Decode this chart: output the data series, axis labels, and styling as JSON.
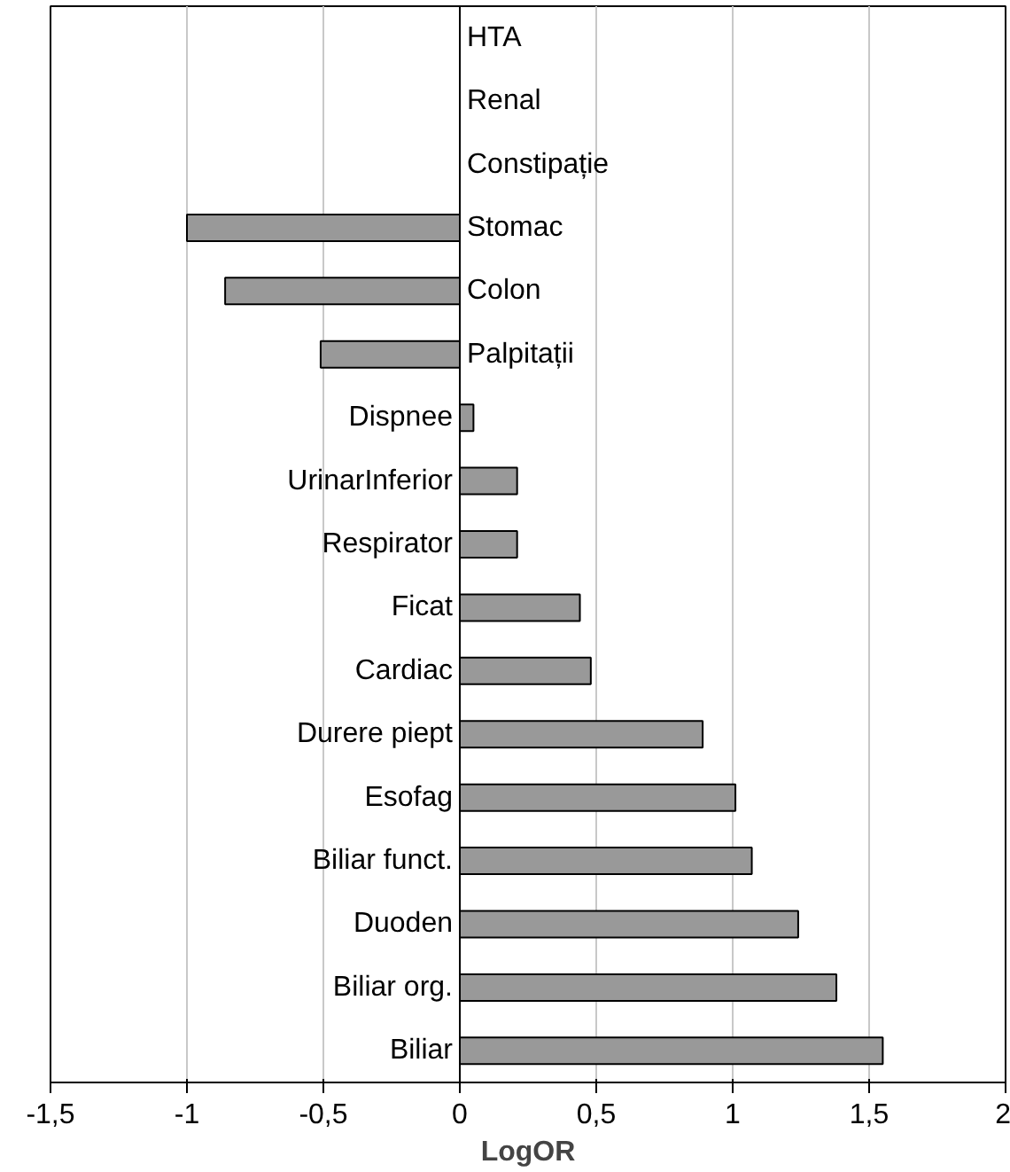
{
  "chart_data": {
    "type": "bar",
    "orientation": "horizontal",
    "xlabel": "LogOR",
    "categories": [
      "HTA",
      "Renal",
      "Constipație",
      "Stomac",
      "Colon",
      "Palpitații",
      "Dispnee",
      "UrinarInferior",
      "Respirator",
      "Ficat",
      "Cardiac",
      "Durere piept",
      "Esofag",
      "Biliar funct.",
      "Duoden",
      "Biliar org.",
      "Biliar"
    ],
    "values": [
      null,
      null,
      null,
      -1.0,
      -0.86,
      -0.51,
      0.05,
      0.21,
      0.21,
      0.44,
      0.48,
      0.89,
      1.01,
      1.07,
      1.24,
      1.38,
      1.55
    ],
    "color": "#999999",
    "xlim": [
      -1.5,
      2
    ],
    "xticks": [
      {
        "value": -1.5,
        "label": "-1,5"
      },
      -1,
      {
        "value": -0.5,
        "label": "-0,5"
      },
      0,
      {
        "value": 0.5,
        "label": "0,5"
      },
      1,
      {
        "value": 1.5,
        "label": "1,5"
      },
      2
    ],
    "grid": "x"
  }
}
